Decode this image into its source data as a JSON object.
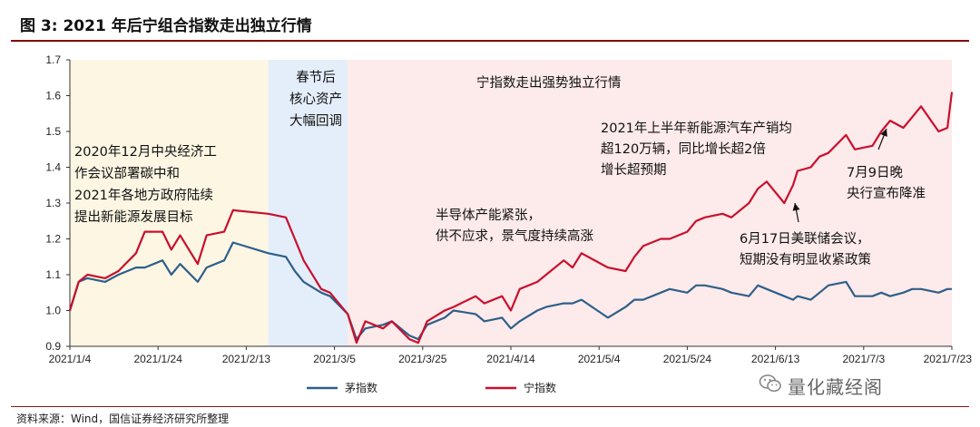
{
  "figure": {
    "title": "图 3:  2021 年后宁组合指数走出独立行情",
    "source": "资料来源：Wind，国信证券经济研究所整理",
    "watermark": "量化藏经阁",
    "watermark_icon": "wechat-icon"
  },
  "chart_data": {
    "type": "line",
    "title": "",
    "xlabel": "",
    "ylabel": "",
    "ylim": [
      0.9,
      1.7
    ],
    "yticks": [
      "0.9",
      "1.0",
      "1.1",
      "1.2",
      "1.3",
      "1.4",
      "1.5",
      "1.6",
      "1.7"
    ],
    "xticks": [
      "2021/1/4",
      "2021/1/24",
      "2021/2/13",
      "2021/3/5",
      "2021/3/25",
      "2021/4/14",
      "2021/5/4",
      "2021/5/24",
      "2021/6/13",
      "2021/7/3",
      "2021/7/23"
    ],
    "xrange": [
      "2021-01-04",
      "2021-07-23"
    ],
    "grid": false,
    "legend_position": "bottom",
    "x": [
      "2021-01-04",
      "2021-01-06",
      "2021-01-08",
      "2021-01-12",
      "2021-01-15",
      "2021-01-19",
      "2021-01-21",
      "2021-01-25",
      "2021-01-27",
      "2021-01-29",
      "2021-02-02",
      "2021-02-04",
      "2021-02-08",
      "2021-02-10",
      "2021-02-18",
      "2021-02-22",
      "2021-02-24",
      "2021-02-26",
      "2021-03-02",
      "2021-03-04",
      "2021-03-08",
      "2021-03-10",
      "2021-03-12",
      "2021-03-16",
      "2021-03-18",
      "2021-03-22",
      "2021-03-24",
      "2021-03-26",
      "2021-03-30",
      "2021-04-01",
      "2021-04-06",
      "2021-04-08",
      "2021-04-12",
      "2021-04-14",
      "2021-04-16",
      "2021-04-20",
      "2021-04-22",
      "2021-04-26",
      "2021-04-28",
      "2021-04-30",
      "2021-05-06",
      "2021-05-10",
      "2021-05-12",
      "2021-05-14",
      "2021-05-18",
      "2021-05-20",
      "2021-05-24",
      "2021-05-26",
      "2021-05-28",
      "2021-06-01",
      "2021-06-03",
      "2021-06-07",
      "2021-06-09",
      "2021-06-11",
      "2021-06-15",
      "2021-06-17",
      "2021-06-18",
      "2021-06-21",
      "2021-06-23",
      "2021-06-25",
      "2021-06-29",
      "2021-07-01",
      "2021-07-05",
      "2021-07-07",
      "2021-07-09",
      "2021-07-12",
      "2021-07-14",
      "2021-07-16",
      "2021-07-20",
      "2021-07-22",
      "2021-07-23"
    ],
    "series": [
      {
        "name": "茅指数",
        "color": "#2e5f8a",
        "values": [
          1.0,
          1.08,
          1.09,
          1.08,
          1.1,
          1.12,
          1.12,
          1.14,
          1.1,
          1.13,
          1.08,
          1.12,
          1.14,
          1.19,
          1.16,
          1.15,
          1.11,
          1.08,
          1.05,
          1.04,
          0.99,
          0.92,
          0.95,
          0.96,
          0.97,
          0.93,
          0.92,
          0.96,
          0.98,
          1.0,
          0.99,
          0.97,
          0.98,
          0.95,
          0.97,
          1.0,
          1.01,
          1.02,
          1.02,
          1.03,
          0.98,
          1.01,
          1.03,
          1.03,
          1.05,
          1.06,
          1.05,
          1.07,
          1.07,
          1.06,
          1.05,
          1.04,
          1.07,
          1.06,
          1.04,
          1.03,
          1.04,
          1.03,
          1.05,
          1.07,
          1.08,
          1.04,
          1.04,
          1.05,
          1.04,
          1.05,
          1.06,
          1.06,
          1.05,
          1.06,
          1.06
        ]
      },
      {
        "name": "宁指数",
        "color": "#c8102e",
        "values": [
          1.0,
          1.08,
          1.1,
          1.09,
          1.11,
          1.16,
          1.22,
          1.22,
          1.17,
          1.21,
          1.13,
          1.21,
          1.22,
          1.28,
          1.27,
          1.26,
          1.2,
          1.14,
          1.06,
          1.05,
          0.99,
          0.91,
          0.97,
          0.95,
          0.97,
          0.92,
          0.91,
          0.97,
          1.0,
          1.01,
          1.04,
          1.02,
          1.04,
          1.0,
          1.06,
          1.08,
          1.1,
          1.14,
          1.12,
          1.16,
          1.12,
          1.11,
          1.15,
          1.18,
          1.2,
          1.2,
          1.22,
          1.25,
          1.26,
          1.27,
          1.26,
          1.3,
          1.34,
          1.36,
          1.3,
          1.35,
          1.39,
          1.4,
          1.43,
          1.44,
          1.49,
          1.45,
          1.46,
          1.5,
          1.53,
          1.51,
          1.54,
          1.57,
          1.5,
          1.51,
          1.61
        ]
      }
    ],
    "regions": [
      {
        "from": "2021-01-04",
        "to": "2021-02-18",
        "color": "#fdf6e3"
      },
      {
        "from": "2021-02-18",
        "to": "2021-03-08",
        "color": "#e4eefa"
      },
      {
        "from": "2021-03-08",
        "to": "2021-07-23",
        "color": "#fdeaea"
      }
    ],
    "annotations": [
      {
        "lines": [
          "2020年12月中央经济工",
          "作会议部署碳中和",
          "2021年各地方政府陆续",
          "提出新能源发展目标"
        ]
      },
      {
        "lines": [
          "春节后",
          "核心资产",
          "大幅回调"
        ]
      },
      {
        "lines": [
          "宁指数走出强势独立行情"
        ]
      },
      {
        "lines": [
          "2021年上半年新能源汽车产销均",
          "超120万辆，同比增长超2倍",
          "增长超预期"
        ]
      },
      {
        "lines": [
          "半导体产能紧张，",
          "供不应求，景气度持续高涨"
        ]
      },
      {
        "lines": [
          "6月17日美联储会议，",
          "短期没有明显收紧政策"
        ]
      },
      {
        "lines": [
          "7月9日晚",
          "央行宣布降准"
        ]
      }
    ]
  }
}
